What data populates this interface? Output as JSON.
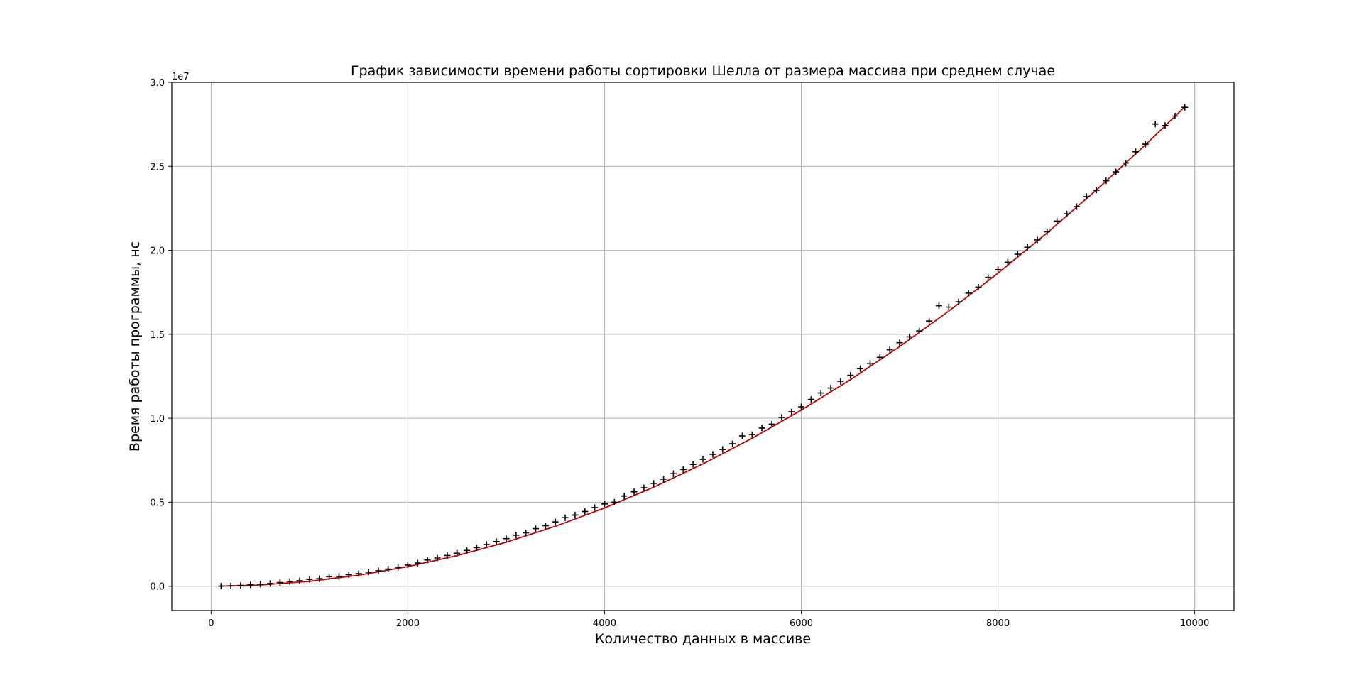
{
  "chart_data": {
    "type": "scatter",
    "title": "График зависимости времени работы сортировки Шелла от размера массива при среднем случае",
    "xlabel": "Количество данных в массиве",
    "ylabel": "Время работы программы, нс",
    "y_offset_label": "1e7",
    "xlim": [
      -400,
      10400
    ],
    "ylim": [
      -1450000,
      30000000
    ],
    "xticks": [
      0,
      2000,
      4000,
      6000,
      8000,
      10000
    ],
    "xtick_labels": [
      "0",
      "2000",
      "4000",
      "6000",
      "8000",
      "10000"
    ],
    "yticks": [
      0,
      5000000,
      10000000,
      15000000,
      20000000,
      25000000,
      30000000
    ],
    "ytick_labels": [
      "0.0",
      "0.5",
      "1.0",
      "1.5",
      "2.0",
      "2.5",
      "3.0"
    ],
    "grid": true,
    "colors": {
      "points": "#000000",
      "fit": "#c00000",
      "grid": "#b0b0b0",
      "axes": "#000000"
    },
    "series": [
      {
        "marker": "plus",
        "x": [
          100,
          200,
          300,
          400,
          500,
          600,
          700,
          800,
          900,
          1000,
          1100,
          1200,
          1300,
          1400,
          1500,
          1600,
          1700,
          1800,
          1900,
          2000,
          2100,
          2200,
          2300,
          2400,
          2500,
          2600,
          2700,
          2800,
          2900,
          3000,
          3100,
          3200,
          3300,
          3400,
          3500,
          3600,
          3700,
          3800,
          3900,
          4000,
          4100,
          4200,
          4300,
          4400,
          4500,
          4600,
          4700,
          4800,
          4900,
          5000,
          5100,
          5200,
          5300,
          5400,
          5500,
          5600,
          5700,
          5800,
          5900,
          6000,
          6100,
          6200,
          6300,
          6400,
          6500,
          6600,
          6700,
          6800,
          6900,
          7000,
          7100,
          7200,
          7300,
          7400,
          7500,
          7600,
          7700,
          7800,
          7900,
          8000,
          8100,
          8200,
          8300,
          8400,
          8500,
          8600,
          8700,
          8800,
          8900,
          9000,
          9100,
          9200,
          9300,
          9400,
          9500,
          9600,
          9700,
          9800,
          9900
        ],
        "y": [
          5000,
          20000,
          45000,
          80000,
          120000,
          160000,
          220000,
          280000,
          330000,
          400000,
          450000,
          570000,
          580000,
          680000,
          750000,
          840000,
          920000,
          1020000,
          1130000,
          1260000,
          1380000,
          1560000,
          1680000,
          1830000,
          1960000,
          2130000,
          2290000,
          2480000,
          2660000,
          2830000,
          3040000,
          3180000,
          3430000,
          3600000,
          3830000,
          4080000,
          4240000,
          4450000,
          4680000,
          4900000,
          5000000,
          5370000,
          5620000,
          5860000,
          6120000,
          6370000,
          6700000,
          6950000,
          7250000,
          7560000,
          7850000,
          8140000,
          8480000,
          8950000,
          9030000,
          9420000,
          9650000,
          10050000,
          10380000,
          10680000,
          11120000,
          11500000,
          11800000,
          12200000,
          12560000,
          12950000,
          13270000,
          13630000,
          14080000,
          14500000,
          14850000,
          15200000,
          15790000,
          16700000,
          16620000,
          16930000,
          17450000,
          17810000,
          18390000,
          18850000,
          19290000,
          19770000,
          20180000,
          20620000,
          21100000,
          21740000,
          22170000,
          22600000,
          23200000,
          23580000,
          24140000,
          24670000,
          25200000,
          25870000,
          26320000,
          27520000,
          27430000,
          27990000,
          28510000
        ]
      },
      {
        "type": "line",
        "x": [
          100,
          500,
          1000,
          1500,
          2000,
          2500,
          3000,
          3500,
          4000,
          4500,
          5000,
          5500,
          6000,
          6500,
          7000,
          7500,
          8000,
          8500,
          9000,
          9500,
          9900
        ],
        "y": [
          3000,
          73000,
          291000,
          655000,
          1165000,
          1820000,
          2620000,
          3567000,
          4659000,
          5896000,
          7280000,
          8808000,
          10483000,
          12302000,
          14268000,
          16379000,
          18636000,
          21038000,
          23587000,
          26280000,
          28540000
        ]
      }
    ]
  }
}
